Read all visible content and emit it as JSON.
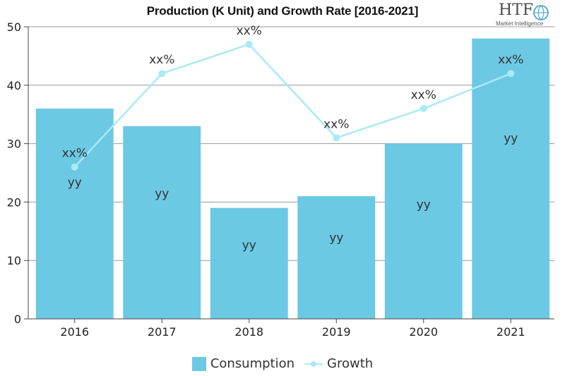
{
  "logo": {
    "text": "HTF",
    "subtext": "Market Intelligence"
  },
  "chart_data": {
    "type": "bar",
    "title": "Production (K Unit) and Growth Rate [2016-2021]",
    "categories": [
      "2016",
      "2017",
      "2018",
      "2019",
      "2020",
      "2021"
    ],
    "ylim": [
      0,
      50
    ],
    "yticks": [
      "0",
      "10",
      "20",
      "30",
      "40",
      "50"
    ],
    "grid": true,
    "legend_position": "bottom",
    "colors": {
      "bar": "#6cc9e4",
      "line": "#a8eaf5"
    },
    "series": [
      {
        "name": "Consumption",
        "type": "bar",
        "values": [
          36,
          33,
          19,
          21,
          30,
          48
        ],
        "labels": [
          "yy",
          "yy",
          "yy",
          "yy",
          "yy",
          "yy"
        ]
      },
      {
        "name": "Growth",
        "type": "line",
        "values": [
          26,
          42,
          47,
          31,
          36,
          42
        ],
        "labels": [
          "xx%",
          "xx%",
          "xx%",
          "xx%",
          "xx%",
          "xx%"
        ]
      }
    ]
  }
}
